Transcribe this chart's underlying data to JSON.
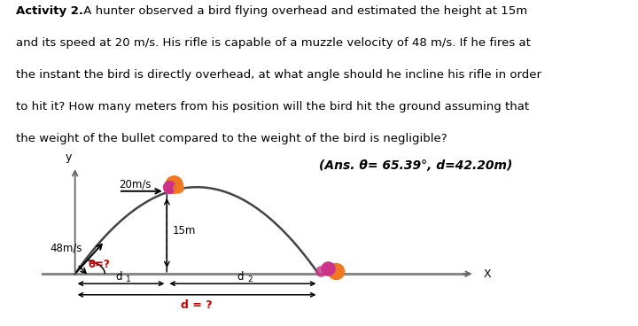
{
  "title_bold": "Activity 2.",
  "title_rest": " A hunter observed a bird flying overhead and estimated the height at 15m",
  "lines": [
    "and its speed at 20 m/s. His rifle is capable of a muzzle velocity of 48 m/s. If he fires at",
    "the instant the bird is directly overhead, at what angle should he incline his rifle in order",
    "to hit it? How many meters from his position will the bird hit the ground assuming that",
    "the weight of the bullet compared to the weight of the bird is negligible?"
  ],
  "answer_text": "(Ans. θ= 65.39°, d=42.20m)",
  "label_20ms": "20m/s",
  "label_48ms": "48m/s",
  "label_15m": "15m",
  "label_theta": "θ=?",
  "label_d1": "d",
  "label_d1_sub": "1",
  "label_d2": "d",
  "label_d2_sub": "2",
  "label_d": "d = ?",
  "label_x": "X",
  "label_y": "y",
  "bg_color": "#ffffff",
  "text_color": "#000000",
  "red_color": "#cc0000",
  "arc_color": "#444444",
  "axis_color": "#999999",
  "dashed_color": "#555555",
  "bird_orange": "#f07820",
  "bird_pink": "#cc3388",
  "fontsize_text": 9.5,
  "fontsize_diagram": 8.5
}
